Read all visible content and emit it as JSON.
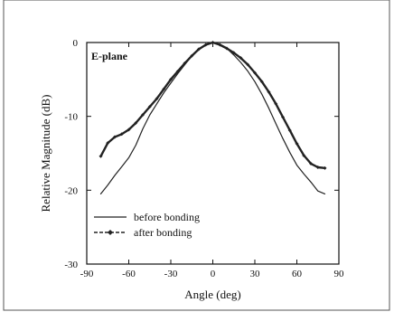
{
  "chart_data": {
    "type": "line",
    "title": "",
    "annotation": "E-plane",
    "xlabel": "Angle (deg)",
    "ylabel": "Relative Magnitude (dB)",
    "xlim": [
      -90,
      90
    ],
    "ylim": [
      -30,
      0
    ],
    "xticks": [
      -90,
      -60,
      -30,
      0,
      30,
      60,
      90
    ],
    "yticks": [
      0,
      -10,
      -20,
      -30
    ],
    "grid": false,
    "legend_position": "lower-left",
    "series": [
      {
        "name": "before bonding",
        "style": "thin solid line",
        "x": [
          -80,
          -75,
          -70,
          -65,
          -60,
          -55,
          -50,
          -45,
          -40,
          -35,
          -30,
          -25,
          -20,
          -15,
          -10,
          -5,
          0,
          5,
          10,
          15,
          20,
          25,
          30,
          35,
          40,
          45,
          50,
          55,
          60,
          65,
          70,
          75,
          80
        ],
        "y": [
          -20.5,
          -19.3,
          -18.0,
          -16.8,
          -15.6,
          -13.9,
          -11.7,
          -9.8,
          -8.3,
          -6.8,
          -5.5,
          -4.2,
          -3.0,
          -1.8,
          -0.9,
          -0.3,
          0.0,
          -0.3,
          -0.8,
          -1.7,
          -2.7,
          -3.9,
          -5.3,
          -7.0,
          -8.9,
          -11.0,
          -13.0,
          -14.9,
          -16.6,
          -17.8,
          -18.9,
          -20.1,
          -20.5
        ]
      },
      {
        "name": "after bonding",
        "style": "bold line with small diamond markers",
        "x": [
          -80,
          -75,
          -70,
          -65,
          -60,
          -55,
          -50,
          -45,
          -40,
          -35,
          -30,
          -25,
          -20,
          -15,
          -10,
          -5,
          0,
          5,
          10,
          15,
          20,
          25,
          30,
          35,
          40,
          45,
          50,
          55,
          60,
          65,
          70,
          75,
          80
        ],
        "y": [
          -15.4,
          -13.6,
          -12.8,
          -12.4,
          -11.8,
          -10.9,
          -9.8,
          -8.7,
          -7.6,
          -6.3,
          -5.0,
          -3.9,
          -2.8,
          -1.8,
          -0.9,
          -0.3,
          0.0,
          -0.3,
          -0.8,
          -1.4,
          -2.1,
          -3.0,
          -4.1,
          -5.3,
          -6.7,
          -8.3,
          -10.1,
          -11.9,
          -13.7,
          -15.3,
          -16.4,
          -16.9,
          -17.0
        ]
      }
    ]
  }
}
